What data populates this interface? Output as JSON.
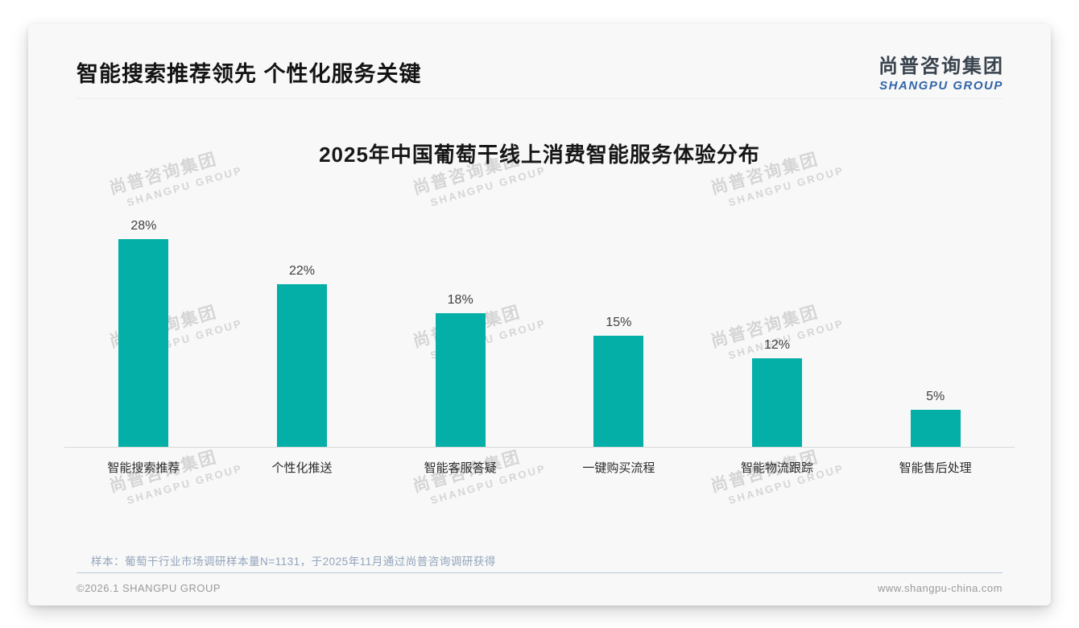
{
  "slide": {
    "title": "智能搜索推荐领先 个性化服务关键",
    "logo": {
      "cn": "尚普咨询集团",
      "en": "SHANGPU GROUP"
    },
    "watermark": {
      "cn": "尚普咨询集团",
      "en": "SHANGPU GROUP"
    },
    "footnote": "样本：葡萄干行业市场调研样本量N=1131，于2025年11月通过尚普咨询调研获得",
    "footer": {
      "left": "©2026.1 SHANGPU GROUP",
      "right": "www.shangpu-china.com"
    }
  },
  "colors": {
    "accent_teal": "#04AFA8",
    "logo_dark": "#39434E",
    "logo_blue": "#3265A8",
    "footnote_gray_blue": "#92A4BC"
  },
  "chart_data": {
    "type": "bar",
    "title": "2025年中国葡萄干线上消费智能服务体验分布",
    "categories": [
      "智能搜索推荐",
      "个性化推送",
      "智能客服答疑",
      "一键购买流程",
      "智能物流跟踪",
      "智能售后处理"
    ],
    "values": [
      28,
      22,
      18,
      15,
      12,
      5
    ],
    "value_labels": [
      "28%",
      "22%",
      "18%",
      "15%",
      "12%",
      "5%"
    ],
    "unit": "%",
    "ylim": [
      0,
      30
    ],
    "grid": false,
    "legend": false,
    "bar_color": "#04AFA8"
  }
}
